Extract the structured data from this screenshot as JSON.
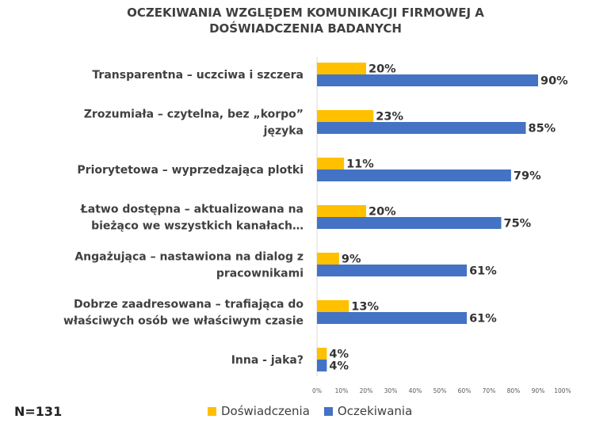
{
  "chart_data": {
    "type": "bar",
    "orientation": "horizontal",
    "title": "OCZEKIWANIA WZGLĘDEM KOMUNIKACJI FIRMOWEJ A DOŚWIADCZENIA BADANYCH",
    "title_lines": [
      "OCZEKIWANIA WZGLĘDEM KOMUNIKACJI FIRMOWEJ A",
      "DOŚWIADCZENIA BADANYCH"
    ],
    "categories": [
      [
        "Transparentna – uczciwa i szczera"
      ],
      [
        "Zrozumiała – czytelna, bez „korpo”",
        "języka"
      ],
      [
        "Priorytetowa – wyprzedzająca plotki"
      ],
      [
        "Łatwo dostępna – aktualizowana na",
        "bieżąco we wszystkich kanałach…"
      ],
      [
        "Angażująca – nastawiona na dialog z",
        "pracownikami"
      ],
      [
        "Dobrze zaadresowana – trafiająca do",
        "właściwych osób we właściwym czasie"
      ],
      [
        "Inna - jaka?"
      ]
    ],
    "series": [
      {
        "name": "Doświadczenia",
        "color": "#FFC000",
        "values": [
          20,
          23,
          11,
          20,
          9,
          13,
          4
        ],
        "labels": [
          "20%",
          "23%",
          "11%",
          "20%",
          "9%",
          "13%",
          "4%"
        ]
      },
      {
        "name": "Oczekiwania",
        "color": "#4472C4",
        "values": [
          90,
          85,
          79,
          75,
          61,
          61,
          4
        ],
        "labels": [
          "90%",
          "85%",
          "79%",
          "75%",
          "61%",
          "61%",
          "4%"
        ]
      }
    ],
    "xlim": [
      0,
      100
    ],
    "x_ticks": [
      "0%",
      "10%",
      "20%",
      "30%",
      "40%",
      "50%",
      "60%",
      "70%",
      "80%",
      "90%",
      "100%"
    ],
    "grid": false,
    "legend": "bottom"
  },
  "footnote": "N=131"
}
